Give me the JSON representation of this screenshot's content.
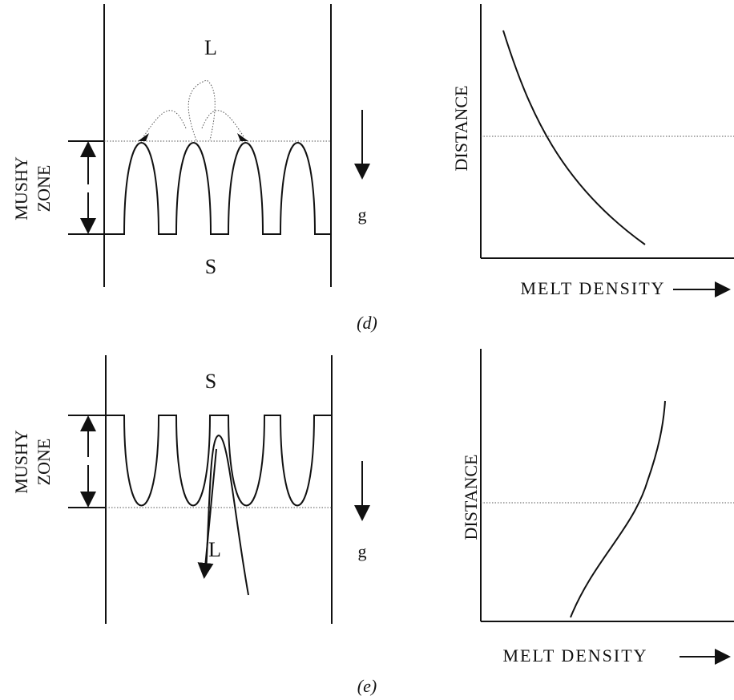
{
  "panels": [
    {
      "label": "(d)",
      "top_phase": "L",
      "bottom_phase": "S",
      "zone_label": [
        "MUSHY",
        "ZONE"
      ],
      "gravity": "g",
      "graph": {
        "y_label": "DISTANCE",
        "x_label": "MELT DENSITY"
      }
    },
    {
      "label": "(e)",
      "top_phase": "S",
      "bottom_phase": "L",
      "zone_label": [
        "MUSHY",
        "ZONE"
      ],
      "gravity": "g",
      "graph": {
        "y_label": "DISTANCE",
        "x_label": "MELT DENSITY"
      }
    }
  ]
}
